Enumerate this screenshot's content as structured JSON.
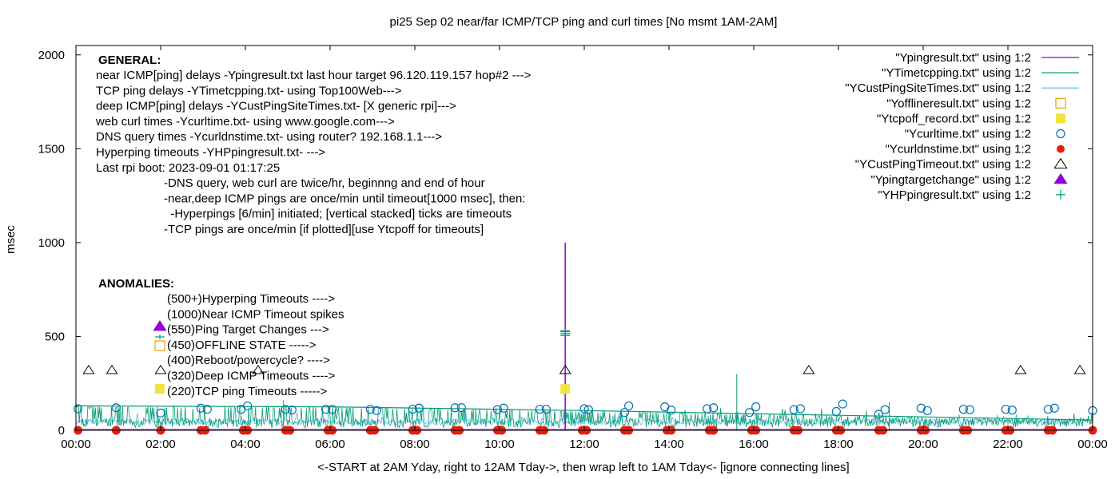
{
  "chart_data": {
    "type": "line",
    "title": "pi25 Sep 02  near/far ICMP/TCP ping and curl times [No msmt 1AM-2AM]",
    "xlabel": "<-START at 2AM Yday, right to 12AM Tday->, then wrap left to 1AM Tday<- [ignore connecting lines]",
    "ylabel": "msec",
    "xlim": [
      0,
      24
    ],
    "ylim": [
      0,
      2050
    ],
    "x_ticks": [
      "00:00",
      "02:00",
      "04:00",
      "06:00",
      "08:00",
      "10:00",
      "12:00",
      "14:00",
      "16:00",
      "18:00",
      "20:00",
      "22:00",
      "00:00"
    ],
    "y_ticks": [
      "0",
      "500",
      "1000",
      "1500",
      "2000"
    ],
    "grid": false,
    "legend_position": "top-right",
    "legend": [
      {
        "label": "\"Ypingresult.txt\" using 1:2",
        "kind": "line",
        "color": "#9400d3"
      },
      {
        "label": "\"YTimetcpping.txt\" using 1:2",
        "kind": "line",
        "color": "#009e73"
      },
      {
        "label": "\"YCustPingSiteTimes.txt\" using 1:2",
        "kind": "line",
        "color": "#56b4e9"
      },
      {
        "label": "\"Yofflineresult.txt\" using 1:2",
        "kind": "open-square",
        "color": "#e69f00"
      },
      {
        "label": "\"Ytcpoff_record.txt\" using 1:2",
        "kind": "filled-square",
        "color": "#f0e442"
      },
      {
        "label": "\"Ycurltime.txt\" using 1:2",
        "kind": "open-circle",
        "color": "#0072b2"
      },
      {
        "label": "\"Ycurldnstime.txt\" using 1:2",
        "kind": "filled-circle",
        "color": "#e51e10"
      },
      {
        "label": "\"YCustPingTimeout.txt\" using 1:2",
        "kind": "open-triangle",
        "color": "#000000"
      },
      {
        "label": "\"Ypingtargetchange\" using 1:2",
        "kind": "filled-triangle",
        "color": "#9400d3"
      },
      {
        "label": "\"YHPpingresult.txt\" using 1:2",
        "kind": "plus",
        "color": "#009e73"
      }
    ],
    "series": [
      {
        "name": "\"Ypingresult.txt\" using 1:2",
        "type": "line",
        "color": "#9400d3",
        "baseline": 5,
        "spikes": [
          {
            "x": 11.55,
            "y": 1000
          }
        ]
      },
      {
        "name": "\"YTimetcpping.txt\" using 1:2",
        "type": "line",
        "color": "#009e73",
        "trend": [
          {
            "x": 0,
            "y": 130
          },
          {
            "x": 6,
            "y": 125
          },
          {
            "x": 12,
            "y": 105
          },
          {
            "x": 18,
            "y": 80
          },
          {
            "x": 24,
            "y": 55
          }
        ],
        "spikes": [
          {
            "x": 15.6,
            "y": 300
          },
          {
            "x": 4.9,
            "y": 160
          },
          {
            "x": 19.2,
            "y": 150
          }
        ]
      },
      {
        "name": "\"YCustPingSiteTimes.txt\" using 1:2",
        "type": "line",
        "color": "#56b4e9",
        "baseline": 35
      }
    ],
    "points": {
      "curl": {
        "color": "#0072b2",
        "x": [
          0.05,
          0.95,
          2.0,
          2.95,
          3.1,
          3.9,
          4.05,
          4.95,
          5.1,
          5.9,
          6.05,
          6.95,
          7.1,
          7.95,
          8.1,
          8.95,
          9.1,
          9.95,
          10.1,
          10.95,
          11.1,
          12.0,
          12.1,
          12.95,
          13.05,
          13.9,
          14.05,
          14.9,
          15.05,
          15.9,
          16.05,
          16.95,
          17.1,
          17.95,
          18.1,
          18.95,
          19.1,
          19.95,
          20.1,
          20.95,
          21.1,
          21.95,
          22.1,
          22.95,
          23.1,
          24.0
        ],
        "y": [
          115,
          120,
          92,
          118,
          112,
          112,
          130,
          112,
          108,
          112,
          112,
          112,
          105,
          112,
          118,
          120,
          120,
          110,
          118,
          112,
          112,
          115,
          110,
          95,
          130,
          125,
          108,
          115,
          120,
          95,
          125,
          110,
          115,
          100,
          140,
          85,
          110,
          118,
          105,
          112,
          110,
          112,
          108,
          112,
          118,
          105
        ]
      },
      "dns": {
        "color": "#e51e10",
        "y": 0,
        "x": [
          0.05,
          0.95,
          2.0,
          2.95,
          3.05,
          3.95,
          4.05,
          4.95,
          5.05,
          5.95,
          6.05,
          6.95,
          7.05,
          7.95,
          8.05,
          8.95,
          9.05,
          9.95,
          10.05,
          10.95,
          11.05,
          11.95,
          12.05,
          12.95,
          13.05,
          13.95,
          14.05,
          14.95,
          15.05,
          15.95,
          16.05,
          16.95,
          17.05,
          17.95,
          18.05,
          18.95,
          19.05,
          19.95,
          20.05,
          20.95,
          21.05,
          21.95,
          22.05,
          22.95,
          23.05,
          24.0
        ]
      },
      "timeouts": {
        "color": "#000000",
        "y": 320,
        "x": [
          0.3,
          0.85,
          2.0,
          4.3,
          11.55,
          17.3,
          22.3,
          23.7
        ]
      },
      "hpping": {
        "color": "#009e73",
        "x": 11.55,
        "y": [
          505,
          515,
          525,
          530
        ]
      },
      "tcpoff": {
        "color": "#f0e442",
        "x": 11.55,
        "y": 220
      }
    },
    "annotations": {
      "general_header": "GENERAL:",
      "general": [
        "near ICMP[ping] delays -Ypingresult.txt last hour target 96.120.119.157 hop#2 --->",
        "TCP ping delays -YTimetcpping.txt- using Top100Web--->",
        "deep ICMP[ping] delays -YCustPingSiteTimes.txt- [X generic rpi]--->",
        "web curl times -Ycurltime.txt- using www.google.com--->",
        "DNS query times -Ycurldnstime.txt- using router? 192.168.1.1--->",
        "Hyperping timeouts -YHPpingresult.txt- --->",
        "Last rpi boot: 2023-09-01 01:17:25"
      ],
      "notes": [
        "-DNS query, web curl are twice/hr, beginnng and end of hour",
        "-near,deep ICMP pings are once/min until timeout[1000 msec], then:",
        "  -Hyperpings [6/min] initiated; [vertical stacked] ticks are timeouts",
        "-TCP pings are once/min [if plotted][use Ytcpoff for timeouts]"
      ],
      "anomalies_header": "ANOMALIES:",
      "anomalies": [
        "(500+)Hyperping Timeouts ---->",
        "(1000)Near ICMP Timeout spikes",
        "(550)Ping Target Changes --->",
        "(450)OFFLINE STATE ----->",
        "(400)Reboot/powercycle? ---->",
        "(320)Deep ICMP Timeouts ---->",
        "(220)TCP ping Timeouts ----->"
      ]
    }
  }
}
